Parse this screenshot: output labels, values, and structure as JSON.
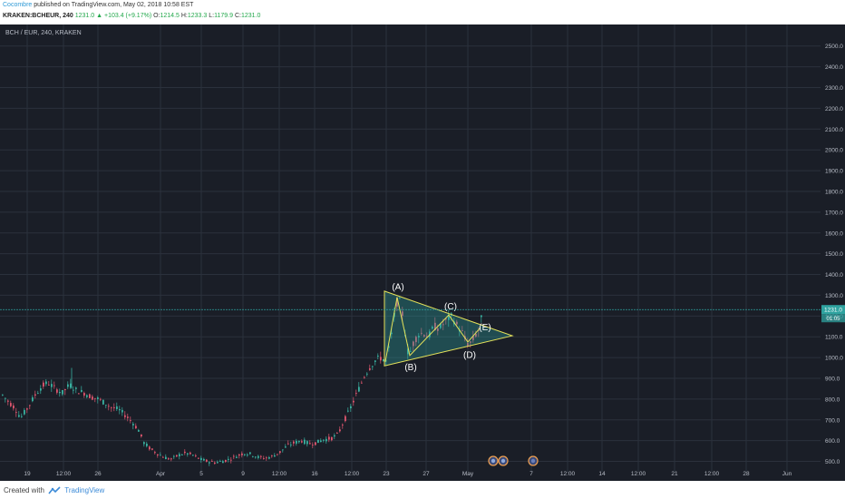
{
  "header": {
    "author": "Cocombre",
    "published": "published on TradingView.com, May 02, 2018 10:58 EST",
    "symbol": "KRAKEN:BCHEUR, 240",
    "last": "1231.0",
    "change": "▲ +103.4 (+9.17%)",
    "o_label": "O:",
    "o_value": "1214.5",
    "h_label": "H:",
    "h_value": "1233.3",
    "l_label": "L:",
    "l_value": "1179.9",
    "c_label": "C:",
    "c_value": "1231.0"
  },
  "footer": {
    "created_with": "Created with",
    "brand": "TradingView"
  },
  "chart_data": {
    "type": "candlestick",
    "title": "BCH / EUR, 240, KRAKEN",
    "ylim": [
      450,
      2600
    ],
    "y_ticks": [
      500,
      600,
      700,
      800,
      900,
      1000,
      1100,
      1200,
      1300,
      1400,
      1500,
      1600,
      1700,
      1800,
      1900,
      2000,
      2100,
      2200,
      2300,
      2400,
      2500
    ],
    "y_tick_labels": [
      "500.0",
      "600.0",
      "700.0",
      "800.0",
      "900.0",
      "1000.0",
      "1100.0",
      "1200.0",
      "1300.0",
      "1400.0",
      "1500.0",
      "1600.0",
      "1700.0",
      "1800.0",
      "1900.0",
      "2000.0",
      "2100.0",
      "2200.0",
      "2300.0",
      "2400.0",
      "2500.0"
    ],
    "x_tick_labels": [
      "19",
      "12:00",
      "26",
      "Apr",
      "5",
      "9",
      "12:00",
      "16",
      "12:00",
      "23",
      "27",
      "May",
      "7",
      "12:00",
      "14",
      "12:00",
      "21",
      "12:00",
      "28",
      "Jun"
    ],
    "price_path": [
      [
        0,
        830
      ],
      [
        8,
        790
      ],
      [
        15,
        760
      ],
      [
        22,
        710
      ],
      [
        30,
        760
      ],
      [
        38,
        820
      ],
      [
        45,
        860
      ],
      [
        52,
        880
      ],
      [
        60,
        850
      ],
      [
        68,
        830
      ],
      [
        76,
        870
      ],
      [
        84,
        840
      ],
      [
        92,
        830
      ],
      [
        100,
        810
      ],
      [
        108,
        800
      ],
      [
        115,
        780
      ],
      [
        122,
        760
      ],
      [
        130,
        750
      ],
      [
        138,
        720
      ],
      [
        145,
        690
      ],
      [
        152,
        650
      ],
      [
        158,
        590
      ],
      [
        165,
        560
      ],
      [
        172,
        540
      ],
      [
        180,
        520
      ],
      [
        188,
        510
      ],
      [
        196,
        530
      ],
      [
        204,
        540
      ],
      [
        212,
        530
      ],
      [
        220,
        510
      ],
      [
        228,
        500
      ],
      [
        236,
        495
      ],
      [
        244,
        500
      ],
      [
        252,
        510
      ],
      [
        260,
        525
      ],
      [
        268,
        540
      ],
      [
        276,
        535
      ],
      [
        284,
        520
      ],
      [
        292,
        515
      ],
      [
        300,
        525
      ],
      [
        308,
        545
      ],
      [
        316,
        575
      ],
      [
        324,
        590
      ],
      [
        332,
        600
      ],
      [
        340,
        585
      ],
      [
        348,
        590
      ],
      [
        356,
        605
      ],
      [
        364,
        610
      ],
      [
        372,
        630
      ],
      [
        378,
        690
      ],
      [
        384,
        740
      ],
      [
        390,
        800
      ],
      [
        396,
        860
      ],
      [
        402,
        920
      ],
      [
        408,
        960
      ],
      [
        414,
        990
      ],
      [
        420,
        1000
      ],
      [
        425,
        980
      ],
      [
        430,
        1080
      ],
      [
        434,
        1200
      ],
      [
        438,
        1290
      ],
      [
        442,
        1240
      ],
      [
        446,
        1120
      ],
      [
        450,
        1000
      ],
      [
        454,
        1060
      ],
      [
        460,
        1110
      ],
      [
        466,
        1120
      ],
      [
        472,
        1100
      ],
      [
        478,
        1150
      ],
      [
        484,
        1140
      ],
      [
        490,
        1170
      ],
      [
        496,
        1200
      ],
      [
        500,
        1180
      ],
      [
        504,
        1150
      ],
      [
        508,
        1130
      ],
      [
        512,
        1090
      ],
      [
        516,
        1060
      ],
      [
        520,
        1080
      ],
      [
        524,
        1110
      ],
      [
        528,
        1140
      ],
      [
        532,
        1231
      ]
    ],
    "latest_price": "1231.0",
    "countdown": "01:05",
    "pattern": {
      "type": "triangle",
      "labels": [
        "(A)",
        "(B)",
        "(C)",
        "(D)",
        "(E)"
      ],
      "points": [
        [
          1250,
          430
        ],
        [
          1010,
          453
        ],
        [
          1200,
          496
        ],
        [
          1070,
          518
        ],
        [
          1150,
          530
        ]
      ]
    },
    "colors": {
      "background": "#1a1e27",
      "grid": "#2b313c",
      "up": "#39b1a0",
      "down": "#e0566e",
      "triangle": "#e5e25a",
      "triangle_fill": "#2fa3a0",
      "last_price": "#2fa3a0",
      "label": "#ffffff"
    },
    "x_ticks_sparse": [
      [
        19,
        "19"
      ]
    ],
    "events": [
      "dividend",
      "dividend",
      "earnings"
    ]
  }
}
